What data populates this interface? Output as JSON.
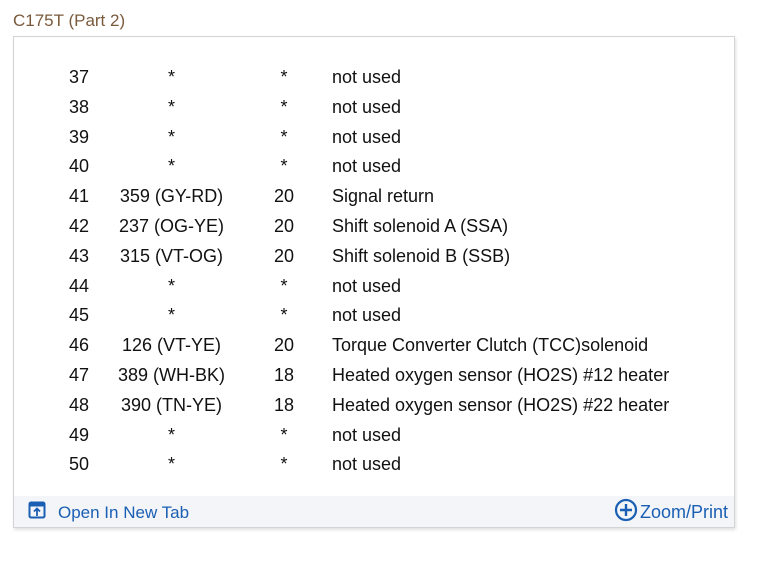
{
  "title": "C175T (Part 2)",
  "rows": [
    [
      "37",
      "*",
      "*",
      "not used"
    ],
    [
      "38",
      "*",
      "*",
      "not used"
    ],
    [
      "39",
      "*",
      "*",
      "not used"
    ],
    [
      "40",
      "*",
      "*",
      "not used"
    ],
    [
      "41",
      "359 (GY-RD)",
      "20",
      "Signal return"
    ],
    [
      "42",
      "237 (OG-YE)",
      "20",
      "Shift solenoid A (SSA)"
    ],
    [
      "43",
      "315 (VT-OG)",
      "20",
      "Shift solenoid B (SSB)"
    ],
    [
      "44",
      "*",
      "*",
      "not used"
    ],
    [
      "45",
      "*",
      "*",
      "not used"
    ],
    [
      "46",
      "126 (VT-YE)",
      "20",
      "Torque Converter Clutch (TCC)solenoid"
    ],
    [
      "47",
      "389 (WH-BK)",
      "18",
      "Heated oxygen sensor (HO2S) #12 heater"
    ],
    [
      "48",
      "390 (TN-YE)",
      "18",
      "Heated oxygen sensor (HO2S) #22 heater"
    ],
    [
      "49",
      "*",
      "*",
      "not used"
    ],
    [
      "50",
      "*",
      "*",
      "not used"
    ]
  ],
  "footer": {
    "open_label": "Open In New Tab",
    "zoom_label": "Zoom/Print"
  },
  "colors": {
    "link": "#1a5fb4",
    "title": "#7a5a3c"
  }
}
